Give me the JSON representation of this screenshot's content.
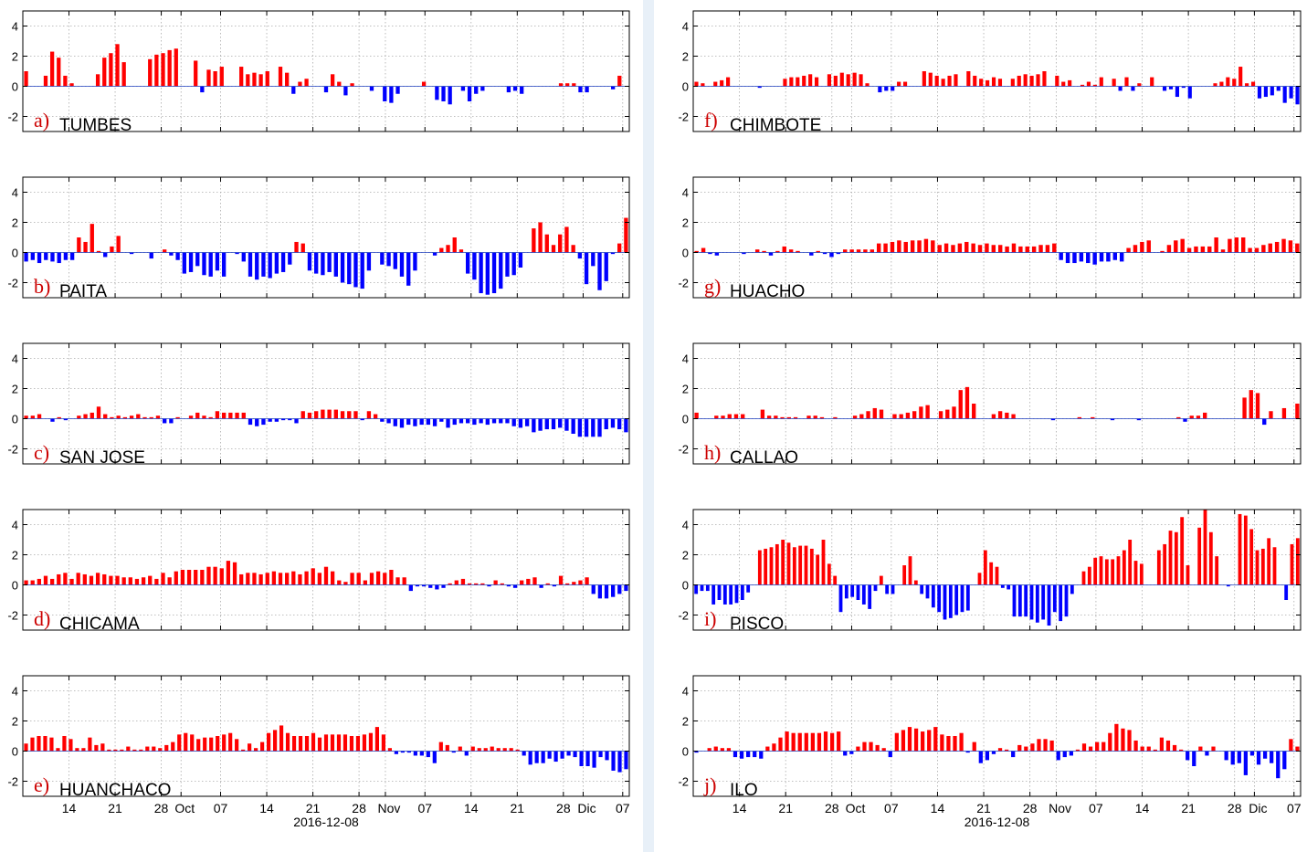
{
  "footer": {
    "date_left": "2016-12-08",
    "date_right": "2016-12-08"
  },
  "chart_data": [
    {
      "type": "bar",
      "panel": "a)",
      "station": "TUMBES",
      "ylim": [
        -3,
        5
      ],
      "yticks": [
        -2,
        0,
        2,
        4
      ],
      "grid": true,
      "positive_color": "#ff0000",
      "negative_color": "#0000ff",
      "x_start": "2016-09-07",
      "x_end": "2016-12-08",
      "values": [
        1.0,
        0,
        0,
        0.7,
        2.3,
        1.9,
        0.7,
        0.2,
        0,
        0,
        0,
        0.8,
        1.9,
        2.2,
        2.8,
        1.6,
        0,
        0,
        0,
        1.8,
        2.1,
        2.2,
        2.4,
        2.5,
        0,
        0,
        1.7,
        -0.4,
        1.1,
        1.0,
        1.3,
        0,
        0,
        1.3,
        0.8,
        0.9,
        0.8,
        1.0,
        0,
        1.3,
        0.9,
        -0.5,
        0.3,
        0.5,
        0,
        0,
        -0.4,
        0.8,
        0.3,
        -0.6,
        0.2,
        0,
        0,
        -0.3,
        0,
        -1.0,
        -1.1,
        -0.5,
        0,
        0,
        0,
        0.3,
        0,
        -0.9,
        -1.0,
        -1.2,
        0,
        -0.3,
        -1.0,
        -0.5,
        -0.3,
        0,
        0,
        0,
        -0.4,
        -0.3,
        -0.5,
        0,
        0,
        0,
        0,
        0,
        0.2,
        0.2,
        0.2,
        -0.4,
        -0.4,
        0,
        0,
        0,
        -0.2,
        0.7,
        0
      ]
    },
    {
      "type": "bar",
      "panel": "b)",
      "station": "PAITA",
      "ylim": [
        -3,
        5
      ],
      "yticks": [
        -2,
        0,
        2,
        4
      ],
      "grid": true,
      "positive_color": "#ff0000",
      "negative_color": "#0000ff",
      "x_start": "2016-09-07",
      "x_end": "2016-12-08",
      "values": [
        -0.6,
        -0.5,
        -0.7,
        -0.5,
        -0.6,
        -0.7,
        -0.5,
        -0.5,
        1.0,
        0.7,
        1.9,
        0.1,
        -0.3,
        0.4,
        1.1,
        0,
        -0.1,
        0,
        0,
        -0.4,
        0,
        0.2,
        -0.2,
        -0.5,
        -1.4,
        -1.3,
        -0.9,
        -1.5,
        -1.6,
        -1.2,
        -1.6,
        0,
        -0.1,
        -0.6,
        -1.6,
        -1.8,
        -1.6,
        -1.7,
        -1.4,
        -1.3,
        -0.8,
        0.7,
        0.6,
        -1.2,
        -1.4,
        -1.5,
        -1.3,
        -1.6,
        -2.0,
        -2.1,
        -2.3,
        -2.4,
        -1.2,
        0,
        -0.8,
        -0.9,
        -1.1,
        -1.6,
        -2.2,
        -1.2,
        0,
        0,
        -0.2,
        0.3,
        0.5,
        1.0,
        0.2,
        -1.4,
        -1.8,
        -2.7,
        -2.8,
        -2.7,
        -2.4,
        -1.6,
        -1.5,
        -1.0,
        0,
        1.6,
        2.0,
        1.2,
        0.5,
        1.2,
        1.7,
        0.5,
        -0.4,
        -2.1,
        -0.9,
        -2.5,
        -1.9,
        -0.1,
        0.6,
        2.3
      ]
    },
    {
      "type": "bar",
      "panel": "c)",
      "station": "SAN JOSE",
      "ylim": [
        -3,
        5
      ],
      "yticks": [
        -2,
        0,
        2,
        4
      ],
      "grid": true,
      "positive_color": "#ff0000",
      "negative_color": "#0000ff",
      "x_start": "2016-09-07",
      "x_end": "2016-12-08",
      "values": [
        0.2,
        0.2,
        0.3,
        0,
        -0.2,
        0.1,
        -0.1,
        0,
        0.2,
        0.3,
        0.4,
        0.8,
        0.3,
        0.1,
        0.2,
        0.1,
        0.2,
        0.3,
        0.1,
        0.1,
        0.2,
        -0.3,
        -0.3,
        0.1,
        0,
        0.2,
        0.4,
        0.2,
        0.1,
        0.5,
        0.4,
        0.4,
        0.4,
        0.4,
        -0.4,
        -0.5,
        -0.4,
        -0.2,
        -0.2,
        -0.1,
        -0.1,
        -0.3,
        0.5,
        0.4,
        0.5,
        0.6,
        0.6,
        0.6,
        0.5,
        0.5,
        0.5,
        -0.1,
        0.5,
        0.3,
        -0.2,
        -0.3,
        -0.5,
        -0.6,
        -0.4,
        -0.5,
        -0.4,
        -0.4,
        -0.5,
        -0.2,
        -0.6,
        -0.4,
        -0.3,
        -0.3,
        -0.4,
        -0.3,
        -0.4,
        -0.3,
        -0.3,
        -0.3,
        -0.5,
        -0.6,
        -0.5,
        -0.9,
        -0.8,
        -0.7,
        -0.7,
        -0.6,
        -0.8,
        -1.0,
        -1.2,
        -1.2,
        -1.2,
        -1.2,
        -0.7,
        -0.6,
        -0.7,
        -0.9
      ]
    },
    {
      "type": "bar",
      "panel": "d)",
      "station": "CHICAMA",
      "ylim": [
        -3,
        5
      ],
      "yticks": [
        -2,
        0,
        2,
        4
      ],
      "grid": true,
      "positive_color": "#ff0000",
      "negative_color": "#0000ff",
      "x_start": "2016-09-07",
      "x_end": "2016-12-08",
      "values": [
        0.3,
        0.3,
        0.4,
        0.6,
        0.4,
        0.7,
        0.8,
        0.4,
        0.8,
        0.7,
        0.6,
        0.8,
        0.7,
        0.6,
        0.6,
        0.5,
        0.5,
        0.4,
        0.5,
        0.6,
        0.4,
        0.8,
        0.5,
        0.9,
        1.0,
        1.0,
        1.0,
        1.0,
        1.2,
        1.2,
        1.1,
        1.6,
        1.5,
        0.7,
        0.8,
        0.8,
        0.7,
        0.8,
        0.9,
        0.8,
        0.8,
        0.9,
        0.7,
        0.9,
        1.1,
        0.8,
        1.2,
        0.9,
        0.3,
        0.2,
        0.8,
        0.8,
        0.3,
        0.8,
        0.9,
        0.8,
        1.0,
        0.5,
        0.5,
        -0.4,
        -0.1,
        -0.1,
        -0.2,
        -0.3,
        -0.2,
        0.1,
        0.3,
        0.4,
        0.1,
        0.1,
        0.1,
        -0.1,
        0.3,
        0.1,
        -0.1,
        -0.2,
        0.3,
        0.4,
        0.5,
        -0.2,
        0.1,
        -0.1,
        0.6,
        0.1,
        0.2,
        0.3,
        0.5,
        -0.6,
        -0.9,
        -0.9,
        -0.8,
        -0.6,
        -0.4
      ]
    },
    {
      "type": "bar",
      "panel": "e)",
      "station": "HUANCHACO",
      "ylim": [
        -3,
        5
      ],
      "yticks": [
        -2,
        0,
        2,
        4
      ],
      "grid": true,
      "positive_color": "#ff0000",
      "negative_color": "#0000ff",
      "x_start": "2016-09-07",
      "x_end": "2016-12-08",
      "values": [
        0.5,
        0.9,
        1.0,
        1.0,
        0.9,
        0.2,
        1.0,
        0.8,
        0.2,
        0.2,
        0.9,
        0.4,
        0.5,
        0.1,
        0.1,
        0.1,
        0.3,
        0.1,
        0.1,
        0.3,
        0.3,
        0.2,
        0.4,
        0.6,
        1.1,
        1.2,
        1.1,
        0.8,
        0.9,
        0.9,
        1.0,
        1.1,
        1.2,
        0.8,
        0.1,
        0.5,
        0.2,
        0.6,
        1.2,
        1.4,
        1.7,
        1.2,
        1.0,
        1.0,
        1.0,
        1.2,
        0.9,
        1.1,
        1.1,
        1.1,
        1.1,
        1.0,
        1.0,
        1.1,
        1.2,
        1.6,
        1.1,
        0.2,
        -0.2,
        -0.1,
        -0.1,
        -0.3,
        -0.3,
        -0.4,
        -0.8,
        0.6,
        0.4,
        -0.1,
        0.3,
        -0.3,
        0.3,
        0.2,
        0.2,
        0.3,
        0.2,
        0.2,
        0.2,
        0.1,
        -0.3,
        -0.9,
        -0.8,
        -0.8,
        -0.5,
        -0.7,
        -0.5,
        -0.3,
        -0.4,
        -1.0,
        -1.0,
        -1.1,
        -0.4,
        -0.6,
        -1.3,
        -1.4,
        -1.2
      ]
    },
    {
      "type": "bar",
      "panel": "f)",
      "station": "CHIMBOTE",
      "ylim": [
        -3,
        5
      ],
      "yticks": [
        -2,
        0,
        2,
        4
      ],
      "grid": true,
      "positive_color": "#ff0000",
      "negative_color": "#0000ff",
      "x_start": "2016-09-07",
      "x_end": "2016-12-08",
      "values": [
        0.3,
        0.2,
        0,
        0.3,
        0.4,
        0.6,
        0,
        0,
        0,
        0,
        -0.1,
        0,
        0,
        0,
        0.5,
        0.6,
        0.6,
        0.7,
        0.8,
        0.6,
        0,
        0.8,
        0.7,
        0.9,
        0.8,
        0.9,
        0.8,
        0.2,
        0,
        -0.4,
        -0.3,
        -0.3,
        0.3,
        0.3,
        0,
        0,
        1.0,
        0.9,
        0.7,
        0.5,
        0.7,
        0.8,
        0,
        1.0,
        0.7,
        0.5,
        0.4,
        0.6,
        0.5,
        0,
        0.5,
        0.7,
        0.8,
        0.7,
        0.8,
        1.0,
        0,
        0.7,
        0.3,
        0.4,
        0,
        0.1,
        0.3,
        0.1,
        0.6,
        0,
        0.5,
        -0.3,
        0.6,
        -0.3,
        0.2,
        0,
        0.6,
        0,
        -0.3,
        -0.2,
        -0.7,
        -0.1,
        -0.8,
        0,
        0,
        0,
        0.2,
        0.3,
        0.6,
        0.5,
        1.3,
        0.2,
        0.3,
        -0.8,
        -0.7,
        -0.6,
        -0.3,
        -1.1,
        -0.8,
        -1.2
      ]
    },
    {
      "type": "bar",
      "panel": "g)",
      "station": "HUACHO",
      "ylim": [
        -3,
        5
      ],
      "yticks": [
        -2,
        0,
        2,
        4
      ],
      "grid": true,
      "positive_color": "#ff0000",
      "negative_color": "#0000ff",
      "x_start": "2016-09-07",
      "x_end": "2016-12-08",
      "values": [
        0.1,
        0.3,
        -0.1,
        -0.2,
        0,
        0,
        0,
        -0.1,
        0,
        0.2,
        0.1,
        -0.2,
        0.1,
        0.4,
        0.2,
        0.1,
        0,
        -0.2,
        0.1,
        -0.1,
        -0.3,
        -0.1,
        0.2,
        0.2,
        0.2,
        0.2,
        0.2,
        0.6,
        0.6,
        0.7,
        0.8,
        0.7,
        0.8,
        0.8,
        0.9,
        0.8,
        0.5,
        0.6,
        0.5,
        0.6,
        0.7,
        0.6,
        0.5,
        0.6,
        0.5,
        0.5,
        0.4,
        0.6,
        0.4,
        0.4,
        0.4,
        0.5,
        0.5,
        0.6,
        -0.5,
        -0.7,
        -0.7,
        -0.6,
        -0.7,
        -0.8,
        -0.6,
        -0.6,
        -0.5,
        -0.6,
        0.3,
        0.5,
        0.7,
        0.8,
        0,
        0.1,
        0.5,
        0.8,
        0.9,
        0.3,
        0.4,
        0.4,
        0.4,
        1.0,
        0.2,
        0.9,
        1.0,
        1.0,
        0.3,
        0.3,
        0.5,
        0.6,
        0.7,
        0.9,
        0.8,
        0.6
      ]
    },
    {
      "type": "bar",
      "panel": "h)",
      "station": "CALLAO",
      "ylim": [
        -3,
        5
      ],
      "yticks": [
        -2,
        0,
        2,
        4
      ],
      "grid": true,
      "positive_color": "#ff0000",
      "negative_color": "#0000ff",
      "x_start": "2016-09-07",
      "x_end": "2016-12-08",
      "values": [
        0.4,
        0,
        0,
        0.2,
        0.2,
        0.3,
        0.3,
        0.3,
        0,
        0,
        0.6,
        0.2,
        0.2,
        0.1,
        0.1,
        0.1,
        0,
        0.2,
        0.2,
        0.1,
        0,
        0.1,
        0,
        0,
        0.2,
        0.3,
        0.5,
        0.7,
        0.6,
        0,
        0.3,
        0.3,
        0.4,
        0.5,
        0.8,
        0.9,
        0,
        0.5,
        0.6,
        0.8,
        1.9,
        2.1,
        1.0,
        0,
        0,
        0.3,
        0.5,
        0.4,
        0.3,
        0,
        0,
        0,
        0,
        0,
        -0.1,
        0,
        0,
        0,
        0.1,
        0,
        0.1,
        0,
        0,
        -0.1,
        0,
        0,
        0,
        -0.1,
        0,
        0,
        0,
        0,
        0,
        0.1,
        -0.2,
        0.2,
        0.2,
        0.4,
        0,
        0,
        0,
        0,
        0,
        1.4,
        1.9,
        1.7,
        -0.4,
        0.5,
        0,
        0.7,
        0,
        1.0
      ]
    },
    {
      "type": "bar",
      "panel": "i)",
      "station": "PISCO",
      "ylim": [
        -3,
        5
      ],
      "yticks": [
        -2,
        0,
        2,
        4
      ],
      "grid": true,
      "positive_color": "#ff0000",
      "negative_color": "#0000ff",
      "x_start": "2016-09-07",
      "x_end": "2016-12-08",
      "values": [
        -0.6,
        -0.4,
        -0.4,
        -1.3,
        -1.0,
        -1.3,
        -1.3,
        -1.2,
        -1.0,
        -0.5,
        0,
        2.3,
        2.4,
        2.5,
        2.7,
        3.0,
        2.8,
        2.5,
        2.6,
        2.6,
        2.4,
        2.0,
        3.0,
        1.4,
        0.6,
        -1.8,
        -0.9,
        -0.8,
        -1.0,
        -1.3,
        -1.6,
        -0.4,
        0.6,
        -0.6,
        -0.6,
        0,
        1.3,
        1.9,
        0.3,
        -0.6,
        -0.9,
        -1.5,
        -1.8,
        -2.3,
        -2.2,
        -2.0,
        -1.8,
        -1.7,
        0,
        0.8,
        2.3,
        1.5,
        1.2,
        -0.2,
        -0.3,
        -2.1,
        -2.1,
        -2.1,
        -2.3,
        -2.5,
        -2.3,
        -2.7,
        -1.8,
        -2.4,
        -2.1,
        -0.6,
        0,
        0.9,
        1.2,
        1.8,
        1.9,
        1.7,
        1.7,
        1.9,
        2.3,
        3.0,
        1.6,
        1.4,
        0,
        0,
        2.3,
        2.7,
        3.6,
        3.5,
        4.5,
        1.3,
        0,
        3.8,
        5.0,
        3.5,
        1.9,
        0,
        -0.1,
        0,
        4.7,
        4.6,
        3.7,
        2.3,
        2.4,
        3.1,
        2.5,
        0,
        -1.0,
        2.7,
        3.1
      ]
    },
    {
      "type": "bar",
      "panel": "j)",
      "station": "ILO",
      "ylim": [
        -3,
        5
      ],
      "yticks": [
        -2,
        0,
        2,
        4
      ],
      "grid": true,
      "positive_color": "#ff0000",
      "negative_color": "#0000ff",
      "x_start": "2016-09-07",
      "x_end": "2016-12-08",
      "values": [
        -0.1,
        0,
        0.2,
        0.3,
        0.2,
        0.2,
        -0.4,
        -0.5,
        -0.4,
        -0.4,
        -0.5,
        0.3,
        0.5,
        0.9,
        1.3,
        1.2,
        1.2,
        1.2,
        1.2,
        1.2,
        1.3,
        1.2,
        1.3,
        -0.3,
        -0.2,
        0.3,
        0.6,
        0.6,
        0.4,
        0.2,
        -0.4,
        1.2,
        1.4,
        1.6,
        1.5,
        1.3,
        1.4,
        1.6,
        1.1,
        1.0,
        1.0,
        1.2,
        -0.1,
        0.6,
        -0.8,
        -0.6,
        -0.2,
        0.2,
        0.1,
        -0.4,
        0.4,
        0.3,
        0.5,
        0.8,
        0.8,
        0.7,
        -0.6,
        -0.4,
        -0.3,
        0.1,
        0.5,
        0.3,
        0.6,
        0.6,
        1.2,
        1.8,
        1.5,
        1.4,
        0.7,
        0.3,
        0.3,
        0.1,
        0.9,
        0.7,
        0.4,
        0.1,
        -0.6,
        -1.0,
        0.3,
        -0.3,
        0.3,
        0,
        -0.6,
        -0.9,
        -0.8,
        -1.6,
        -0.3,
        -0.9,
        -0.5,
        -0.8,
        -1.8,
        -1.2,
        0.8,
        0.3
      ]
    }
  ],
  "x_tick_labels": [
    {
      "date": "2016-09-14",
      "label": "14"
    },
    {
      "date": "2016-09-21",
      "label": "21"
    },
    {
      "date": "2016-09-28",
      "label": "28"
    },
    {
      "date": "2016-10-01",
      "label": "Oct"
    },
    {
      "date": "2016-10-07",
      "label": "07"
    },
    {
      "date": "2016-10-14",
      "label": "14"
    },
    {
      "date": "2016-10-21",
      "label": "21"
    },
    {
      "date": "2016-10-28",
      "label": "28"
    },
    {
      "date": "2016-11-01",
      "label": "Nov"
    },
    {
      "date": "2016-11-07",
      "label": "07"
    },
    {
      "date": "2016-11-14",
      "label": "14"
    },
    {
      "date": "2016-11-21",
      "label": "21"
    },
    {
      "date": "2016-11-28",
      "label": "28"
    },
    {
      "date": "2016-12-01",
      "label": "Dic"
    },
    {
      "date": "2016-12-07",
      "label": "07"
    }
  ]
}
